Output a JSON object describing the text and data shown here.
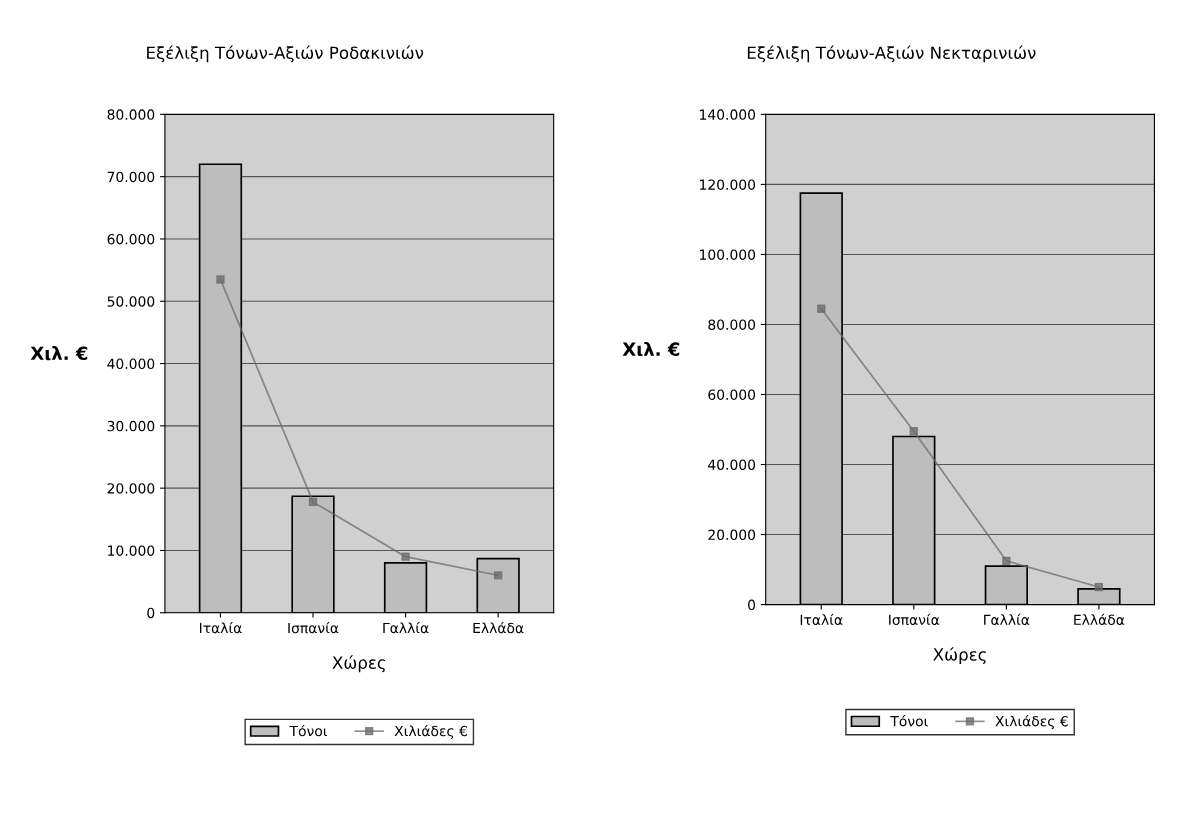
{
  "chart_data": [
    {
      "type": "bar",
      "title": "Εξέλιξη Τόνων-Αξιών Ροδακινιών",
      "xlabel": "Χώρες",
      "ylabel": "Χιλ. €",
      "categories": [
        "Ιταλία",
        "Ισπανία",
        "Γαλλία",
        "Ελλάδα"
      ],
      "series": [
        {
          "name": "Τόνοι",
          "color": "#bdbdbd",
          "values": [
            72000,
            18700,
            8000,
            8700
          ]
        },
        {
          "name": "Χιλιάδες €",
          "type": "line",
          "color": "#6a6a6a",
          "values": [
            53500,
            17800,
            9000,
            6000
          ]
        }
      ],
      "ylim": [
        0,
        80000
      ],
      "yticks": [
        0,
        {
          "value": 10000,
          "label": "10.000"
        },
        {
          "value": 20000,
          "label": "20.000"
        },
        {
          "value": 30000,
          "label": "30.000"
        },
        {
          "value": 40000,
          "label": "40.000"
        },
        {
          "value": 50000,
          "label": "50.000"
        },
        {
          "value": 60000,
          "label": "60.000"
        },
        {
          "value": 70000,
          "label": "70.000"
        },
        {
          "value": 80000,
          "label": "80.000"
        }
      ],
      "grid": "y",
      "legend": "bottom",
      "marker": "square",
      "line_style": "solid"
    },
    {
      "type": "bar",
      "title": "Εξέλιξη Τόνων-Αξιών Νεκταρινιών",
      "xlabel": "Χώρες",
      "ylabel": "Χιλ. €",
      "categories": [
        "Ιταλία",
        "Ισπανία",
        "Γαλλία",
        "Ελλάδα"
      ],
      "series": [
        {
          "name": "Τόνοι",
          "color": "#bdbdbd",
          "values": [
            117500,
            48000,
            11000,
            4500
          ]
        },
        {
          "name": "Χιλιάδες €",
          "type": "line",
          "color": "#6a6a6a",
          "values": [
            84500,
            49500,
            12500,
            5000
          ]
        }
      ],
      "ylim": [
        0,
        140000
      ],
      "yticks": [
        0,
        {
          "value": 20000,
          "label": "20.000"
        },
        {
          "value": 40000,
          "label": "40.000"
        },
        {
          "value": 60000,
          "label": "60.000"
        },
        {
          "value": 80000,
          "label": "80.000"
        },
        {
          "value": 100000,
          "label": "100.000"
        },
        {
          "value": 120000,
          "label": "120.000"
        },
        {
          "value": 140000,
          "label": "140.000"
        }
      ],
      "grid": "y",
      "legend": "bottom",
      "marker": "square",
      "line_style": "solid"
    }
  ]
}
